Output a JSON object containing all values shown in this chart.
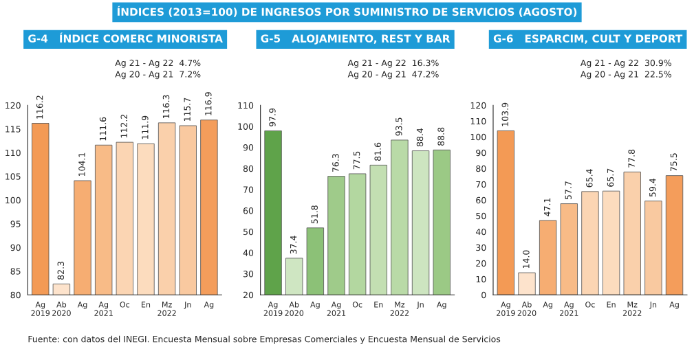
{
  "chart_data": [
    {
      "type": "bar",
      "title": "G-4   ÍNDICE COMERC MINORISTA",
      "categories": [
        "Ag\n2019",
        "Ab\n2020",
        "Ag",
        "Ag\n2021",
        "Oc",
        "En",
        "Mz\n2022",
        "Jn",
        "Ag"
      ],
      "values": [
        116.2,
        82.3,
        104.1,
        111.6,
        112.2,
        111.9,
        116.3,
        115.7,
        116.9
      ],
      "colors": [
        "#f39a55",
        "#fde3cc",
        "#f6ad72",
        "#f8bb87",
        "#fbd5b3",
        "#fcdcbe",
        "#fad0ab",
        "#f9c9a0",
        "#f49d5b"
      ],
      "ylim": [
        80,
        120
      ],
      "yticks": [
        80,
        85,
        90,
        95,
        100,
        105,
        110,
        115,
        120
      ],
      "data_labels": true,
      "grid": false,
      "annotations": [
        "ÍNDICES (2013=100) DE INGRESOS POR SUMINISTRO DE SERVICIOS (AGOSTO)",
        "Ag 21 - Ag 22  4.7%",
        "Ag 20 - Ag 21  7.2%",
        "Fuente: con datos del INEGI. Encuesta Mensual sobre Empresas Comerciales y Encuesta Mensual de Servicios"
      ]
    },
    {
      "type": "bar",
      "title": "G-5   ALOJAMIENTO, REST Y BAR",
      "categories": [
        "Ag\n2019",
        "Ab\n2020",
        "Ag",
        "Ag\n2021",
        "Oc",
        "En",
        "Mz\n2022",
        "Jn",
        "Ag"
      ],
      "values": [
        97.9,
        37.4,
        51.8,
        76.3,
        77.5,
        81.6,
        93.5,
        88.4,
        88.8
      ],
      "colors": [
        "#5fa34a",
        "#cfe6c2",
        "#8cc177",
        "#9fcb8a",
        "#b3d7a0",
        "#c3dfb2",
        "#b9daa7",
        "#cde5c0",
        "#9bc985"
      ],
      "ylim": [
        20,
        110
      ],
      "yticks": [
        20,
        30,
        40,
        50,
        60,
        70,
        80,
        90,
        100,
        110
      ],
      "data_labels": true,
      "grid": false,
      "annotations": [
        "Ag 21 - Ag 22  16.3%",
        "Ag 20 - Ag 21  47.2%"
      ]
    },
    {
      "type": "bar",
      "title": "G-6   ESPARCIM, CULT Y DEPORT",
      "categories": [
        "Ag\n2019",
        "Ab\n2020",
        "Ag",
        "Ag\n2021",
        "Oc",
        "En",
        "Mz\n2022",
        "Jn",
        "Ag"
      ],
      "values": [
        103.9,
        14.0,
        47.1,
        57.7,
        65.4,
        65.7,
        77.8,
        59.4,
        75.5
      ],
      "value_labels": [
        "103.9",
        "14.0",
        "47.1",
        "57.7",
        "65.4",
        "65.7",
        "77.8",
        "59.4",
        "75.5"
      ],
      "colors": [
        "#f39a55",
        "#fde3cc",
        "#f6ad72",
        "#f8bb87",
        "#fbd5b3",
        "#fcdcbe",
        "#fad0ab",
        "#f9c9a0",
        "#f49d5b"
      ],
      "ylim": [
        0,
        120
      ],
      "yticks": [
        0,
        10,
        20,
        30,
        40,
        50,
        60,
        70,
        80,
        90,
        100,
        110,
        120
      ],
      "grid": false,
      "annotations": [
        "Ag 21 - Ag 22  30.9%",
        "Ag 20 - Ag 21  22.5%"
      ]
    }
  ]
}
